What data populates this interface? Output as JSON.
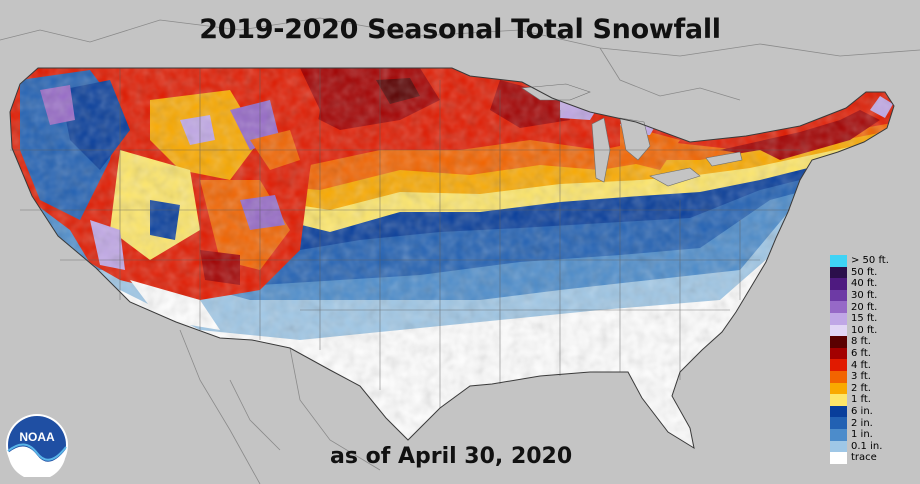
{
  "title": "2019-2020 Seasonal Total Snowfall",
  "subtitle": "as of April 30, 2020",
  "logo": {
    "text": "NOAA",
    "icon": "noaa-logo"
  },
  "legend": [
    {
      "label": "> 50 ft.",
      "color": "#3fd3f5"
    },
    {
      "label": "50 ft.",
      "color": "#2b0f4b"
    },
    {
      "label": "40 ft.",
      "color": "#4e1a80"
    },
    {
      "label": "30 ft.",
      "color": "#6d3aa5"
    },
    {
      "label": "20 ft.",
      "color": "#9669c7"
    },
    {
      "label": "15 ft.",
      "color": "#c0a7e6"
    },
    {
      "label": "10 ft.",
      "color": "#e2d6f5"
    },
    {
      "label": "8 ft.",
      "color": "#5a0000"
    },
    {
      "label": "6 ft.",
      "color": "#a30000"
    },
    {
      "label": "4 ft.",
      "color": "#e11a00"
    },
    {
      "label": "3 ft.",
      "color": "#f26400"
    },
    {
      "label": "2 ft.",
      "color": "#f9a900"
    },
    {
      "label": "1 ft.",
      "color": "#fde66a"
    },
    {
      "label": "6 in.",
      "color": "#083e9b"
    },
    {
      "label": "2 in.",
      "color": "#2261b3"
    },
    {
      "label": "1 in.",
      "color": "#4c8ccb"
    },
    {
      "label": "0.1 in.",
      "color": "#9fc7e6"
    },
    {
      "label": "trace",
      "color": "#ffffff"
    }
  ]
}
